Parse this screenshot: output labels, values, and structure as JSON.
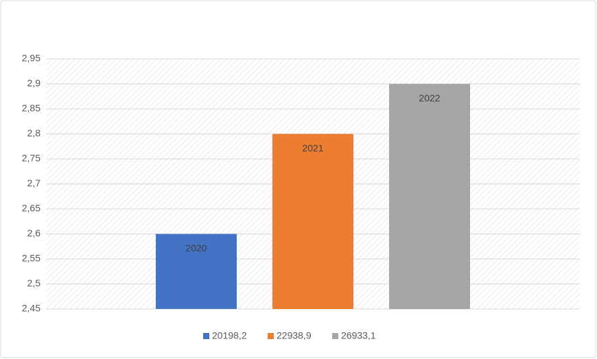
{
  "chart_data": {
    "type": "bar",
    "categories": [
      null
    ],
    "series": [
      {
        "name": "20198,2",
        "label": "2020",
        "color": "#4472c4",
        "values": [
          2.6
        ]
      },
      {
        "name": "22938,9",
        "label": "2021",
        "color": "#ed7d31",
        "values": [
          2.8
        ]
      },
      {
        "name": "26933,1",
        "label": "2022",
        "color": "#a5a5a5",
        "values": [
          2.9
        ]
      }
    ],
    "ylim": [
      2.45,
      2.95
    ],
    "yticks": [
      {
        "value": 2.45,
        "label": "2,45"
      },
      {
        "value": 2.5,
        "label": "2,5"
      },
      {
        "value": 2.55,
        "label": "2,55"
      },
      {
        "value": 2.6,
        "label": "2,6"
      },
      {
        "value": 2.65,
        "label": "2,65"
      },
      {
        "value": 2.7,
        "label": "2,7"
      },
      {
        "value": 2.75,
        "label": "2,75"
      },
      {
        "value": 2.8,
        "label": "2,8"
      },
      {
        "value": 2.85,
        "label": "2,85"
      },
      {
        "value": 2.9,
        "label": "2,9"
      },
      {
        "value": 2.95,
        "label": "2,95"
      }
    ],
    "grid": true,
    "legend": "bottom"
  }
}
